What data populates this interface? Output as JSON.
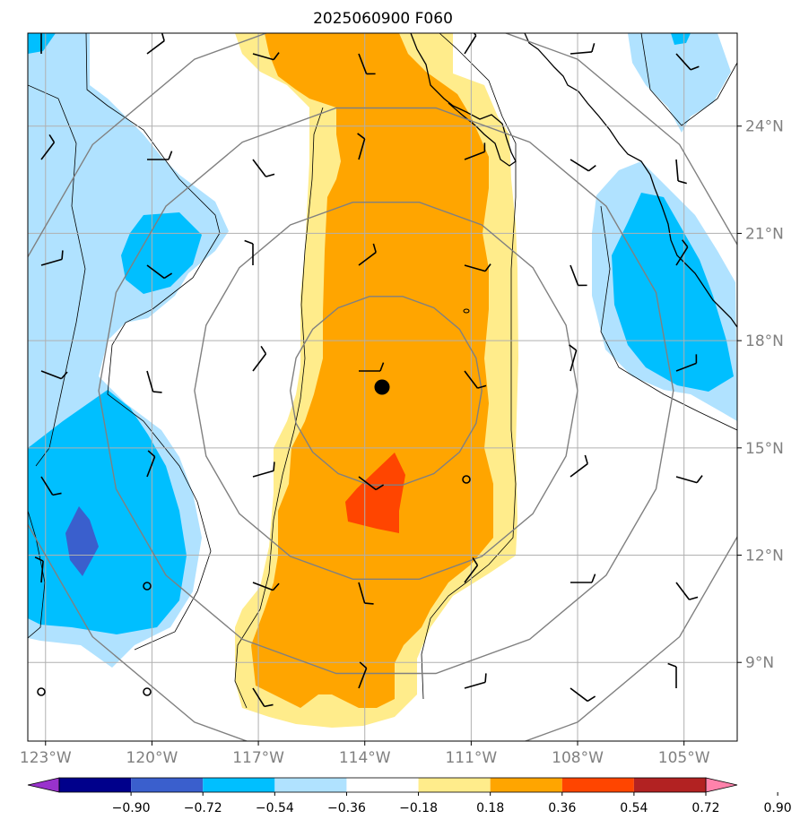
{
  "title": "2025060900 F060",
  "map": {
    "lon_range": [
      -123.5,
      -103.5
    ],
    "lat_range": [
      6.8,
      26.6
    ],
    "lon_ticks": [
      {
        "value": -123,
        "label": "123°W"
      },
      {
        "value": -120,
        "label": "120°W"
      },
      {
        "value": -117,
        "label": "117°W"
      },
      {
        "value": -114,
        "label": "114°W"
      },
      {
        "value": -111,
        "label": "111°W"
      },
      {
        "value": -108,
        "label": "108°W"
      },
      {
        "value": -105,
        "label": "105°W"
      }
    ],
    "lat_ticks": [
      {
        "value": 9,
        "label": "9°N"
      },
      {
        "value": 12,
        "label": "12°N"
      },
      {
        "value": 15,
        "label": "15°N"
      },
      {
        "value": 18,
        "label": "18°N"
      },
      {
        "value": 21,
        "label": "21°N"
      },
      {
        "value": 24,
        "label": "24°N"
      }
    ],
    "center": {
      "lon": -113.4,
      "lat": 16.6
    },
    "range_ring_radii_deg": [
      2.7,
      5.4,
      8.1,
      10.8
    ],
    "grid_color": "#b0b0b0",
    "ring_color": "#808080"
  },
  "colorbar": {
    "levels": [
      -0.9,
      -0.72,
      -0.54,
      -0.36,
      -0.18,
      0.18,
      0.36,
      0.54,
      0.72,
      0.9
    ],
    "tick_labels": [
      "−0.90",
      "−0.72",
      "−0.54",
      "−0.36",
      "−0.18",
      "0.18",
      "0.36",
      "0.54",
      "0.72",
      "0.90"
    ],
    "colors": [
      "#9932cc",
      "#00008b",
      "#3a5fcd",
      "#00bfff",
      "#b0e2ff",
      "#ffffff",
      "#ffec8b",
      "#ffa500",
      "#ff4500",
      "#b22222",
      "#ff82ab"
    ]
  }
}
